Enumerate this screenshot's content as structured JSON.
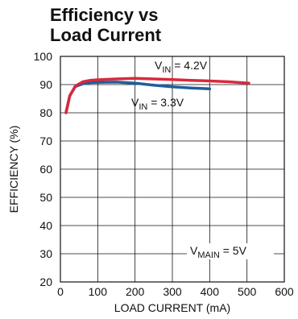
{
  "chart_data": {
    "type": "line",
    "title_lines": [
      "Efficiency vs",
      "Load Current"
    ],
    "xlabel": "LOAD CURRENT (mA)",
    "ylabel": "EFFICIENCY (%)",
    "xlim": [
      0,
      600
    ],
    "ylim": [
      20,
      100
    ],
    "xticks": [
      "0",
      "100",
      "200",
      "300",
      "400",
      "500",
      "600"
    ],
    "yticks": [
      "20",
      "30",
      "40",
      "50",
      "60",
      "70",
      "80",
      "90",
      "100"
    ],
    "grid": true,
    "series": [
      {
        "name": "VIN = 4.2V",
        "label_main": "V",
        "label_sub": "IN",
        "label_rest": " = 4.2V",
        "color": "#d82a3a",
        "x": [
          15,
          25,
          40,
          60,
          80,
          100,
          150,
          200,
          250,
          300,
          350,
          400,
          450,
          505
        ],
        "values": [
          80,
          86,
          89.5,
          91,
          91.5,
          91.7,
          92,
          92.2,
          92,
          91.8,
          91.5,
          91.3,
          91,
          90.5
        ]
      },
      {
        "name": "VIN = 3.3V",
        "label_main": "V",
        "label_sub": "IN",
        "label_rest": " = 3.3V",
        "color": "#1f5d9e",
        "x": [
          15,
          25,
          40,
          60,
          80,
          100,
          150,
          200,
          250,
          300,
          350,
          400
        ],
        "values": [
          80,
          86,
          89.3,
          90.3,
          90.7,
          90.8,
          90.9,
          90.5,
          89.8,
          89.2,
          88.8,
          88.5
        ]
      }
    ],
    "annotation": {
      "main": "V",
      "sub": "MAIN",
      "rest": " = 5V"
    }
  }
}
